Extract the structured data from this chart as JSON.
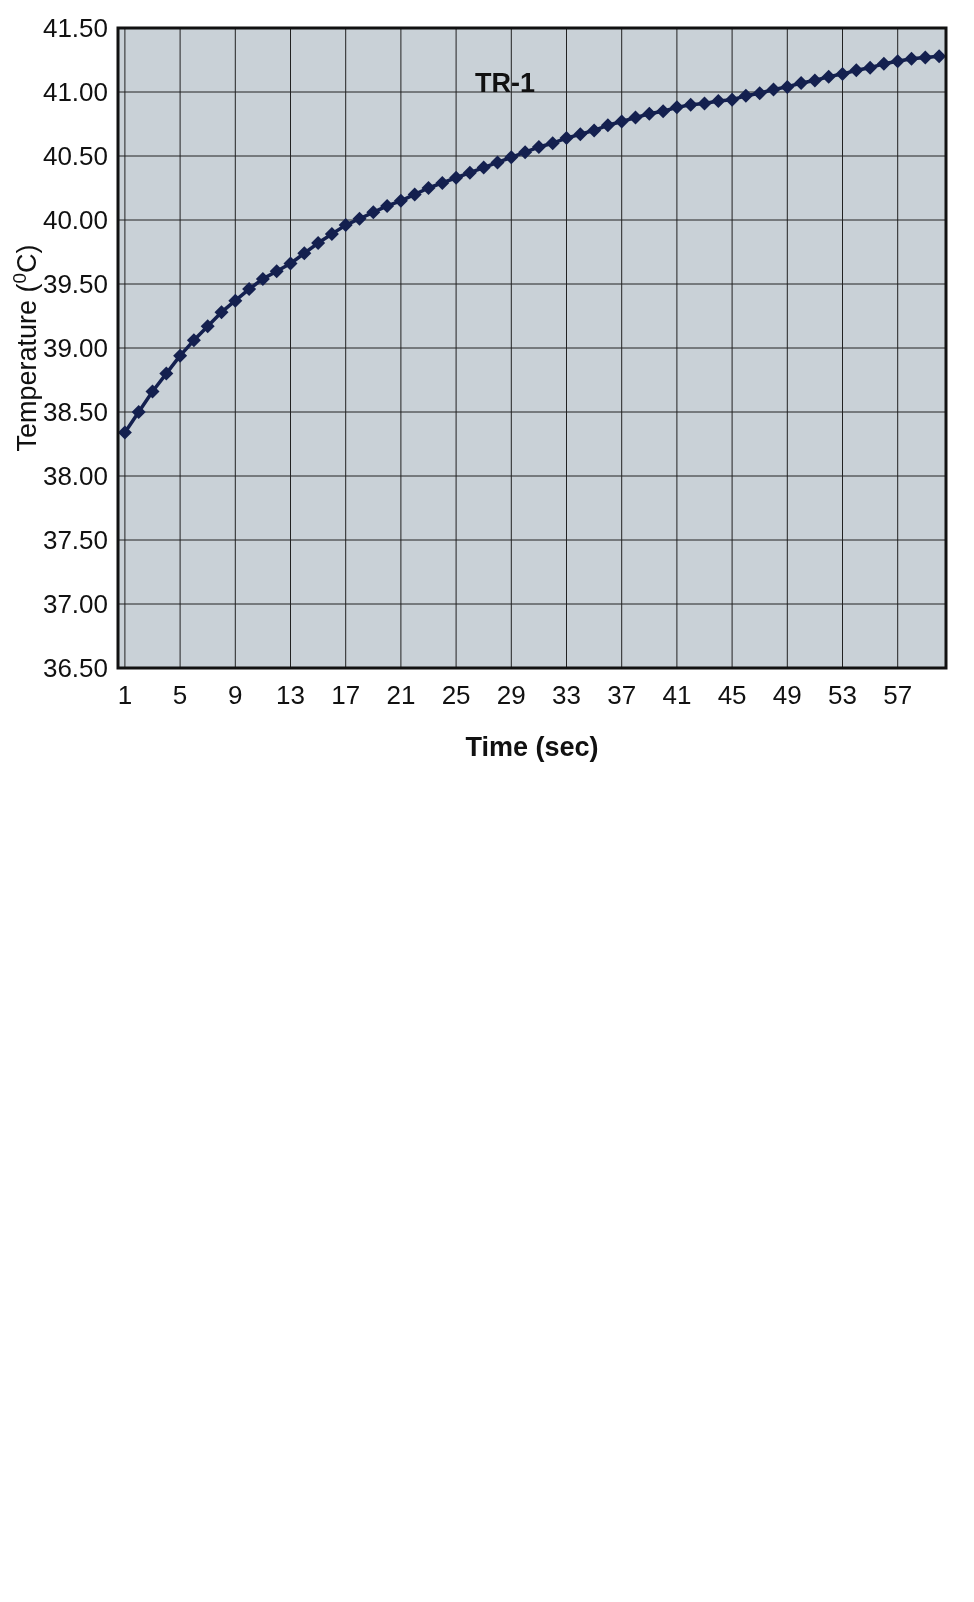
{
  "chart_data": {
    "type": "line",
    "xlabel": "Time (sec)",
    "ylabel": "Temperature ($^{0}$C)",
    "x": [
      1,
      2,
      3,
      4,
      5,
      6,
      7,
      8,
      9,
      10,
      11,
      12,
      13,
      14,
      15,
      16,
      17,
      18,
      19,
      20,
      21,
      22,
      23,
      24,
      25,
      26,
      27,
      28,
      29,
      30,
      31,
      32,
      33,
      34,
      35,
      36,
      37,
      38,
      39,
      40,
      41,
      42,
      43,
      44,
      45,
      46,
      47,
      48,
      49,
      50,
      51,
      52,
      53,
      54,
      55,
      56,
      57,
      58,
      59,
      60
    ],
    "series": [
      {
        "name": "TR-1",
        "color": "#14204f",
        "values": [
          38.34,
          38.5,
          38.66,
          38.8,
          38.94,
          39.06,
          39.17,
          39.28,
          39.37,
          39.46,
          39.54,
          39.6,
          39.66,
          39.74,
          39.82,
          39.89,
          39.96,
          40.01,
          40.06,
          40.11,
          40.15,
          40.2,
          40.25,
          40.29,
          40.33,
          40.37,
          40.41,
          40.45,
          40.49,
          40.53,
          40.57,
          40.6,
          40.64,
          40.67,
          40.7,
          40.74,
          40.77,
          40.8,
          40.83,
          40.85,
          40.88,
          40.9,
          40.91,
          40.93,
          40.94,
          40.97,
          40.99,
          41.02,
          41.04,
          41.07,
          41.09,
          41.12,
          41.14,
          41.17,
          41.19,
          41.22,
          41.24,
          41.26,
          41.27,
          41.28
        ]
      }
    ],
    "xlim": [
      0.5,
      60.5
    ],
    "xticks": [
      1,
      5,
      9,
      13,
      17,
      21,
      25,
      29,
      33,
      37,
      41,
      45,
      49,
      53,
      57
    ],
    "ylim": [
      36.5,
      41.5
    ],
    "yticks": [
      {
        "value": 36.5,
        "label": "36.50"
      },
      {
        "value": 37,
        "label": "37.00"
      },
      {
        "value": 37.5,
        "label": "37.50"
      },
      {
        "value": 38,
        "label": "38.00"
      },
      {
        "value": 38.5,
        "label": "38.50"
      },
      {
        "value": 39,
        "label": "39.00"
      },
      {
        "value": 39.5,
        "label": "39.50"
      },
      {
        "value": 40,
        "label": "40.00"
      },
      {
        "value": 40.5,
        "label": "40.50"
      },
      {
        "value": 41,
        "label": "41.00"
      },
      {
        "value": 41.5,
        "label": "41.50"
      }
    ],
    "grid": true,
    "marker": "diamond",
    "line_style": "solid"
  }
}
